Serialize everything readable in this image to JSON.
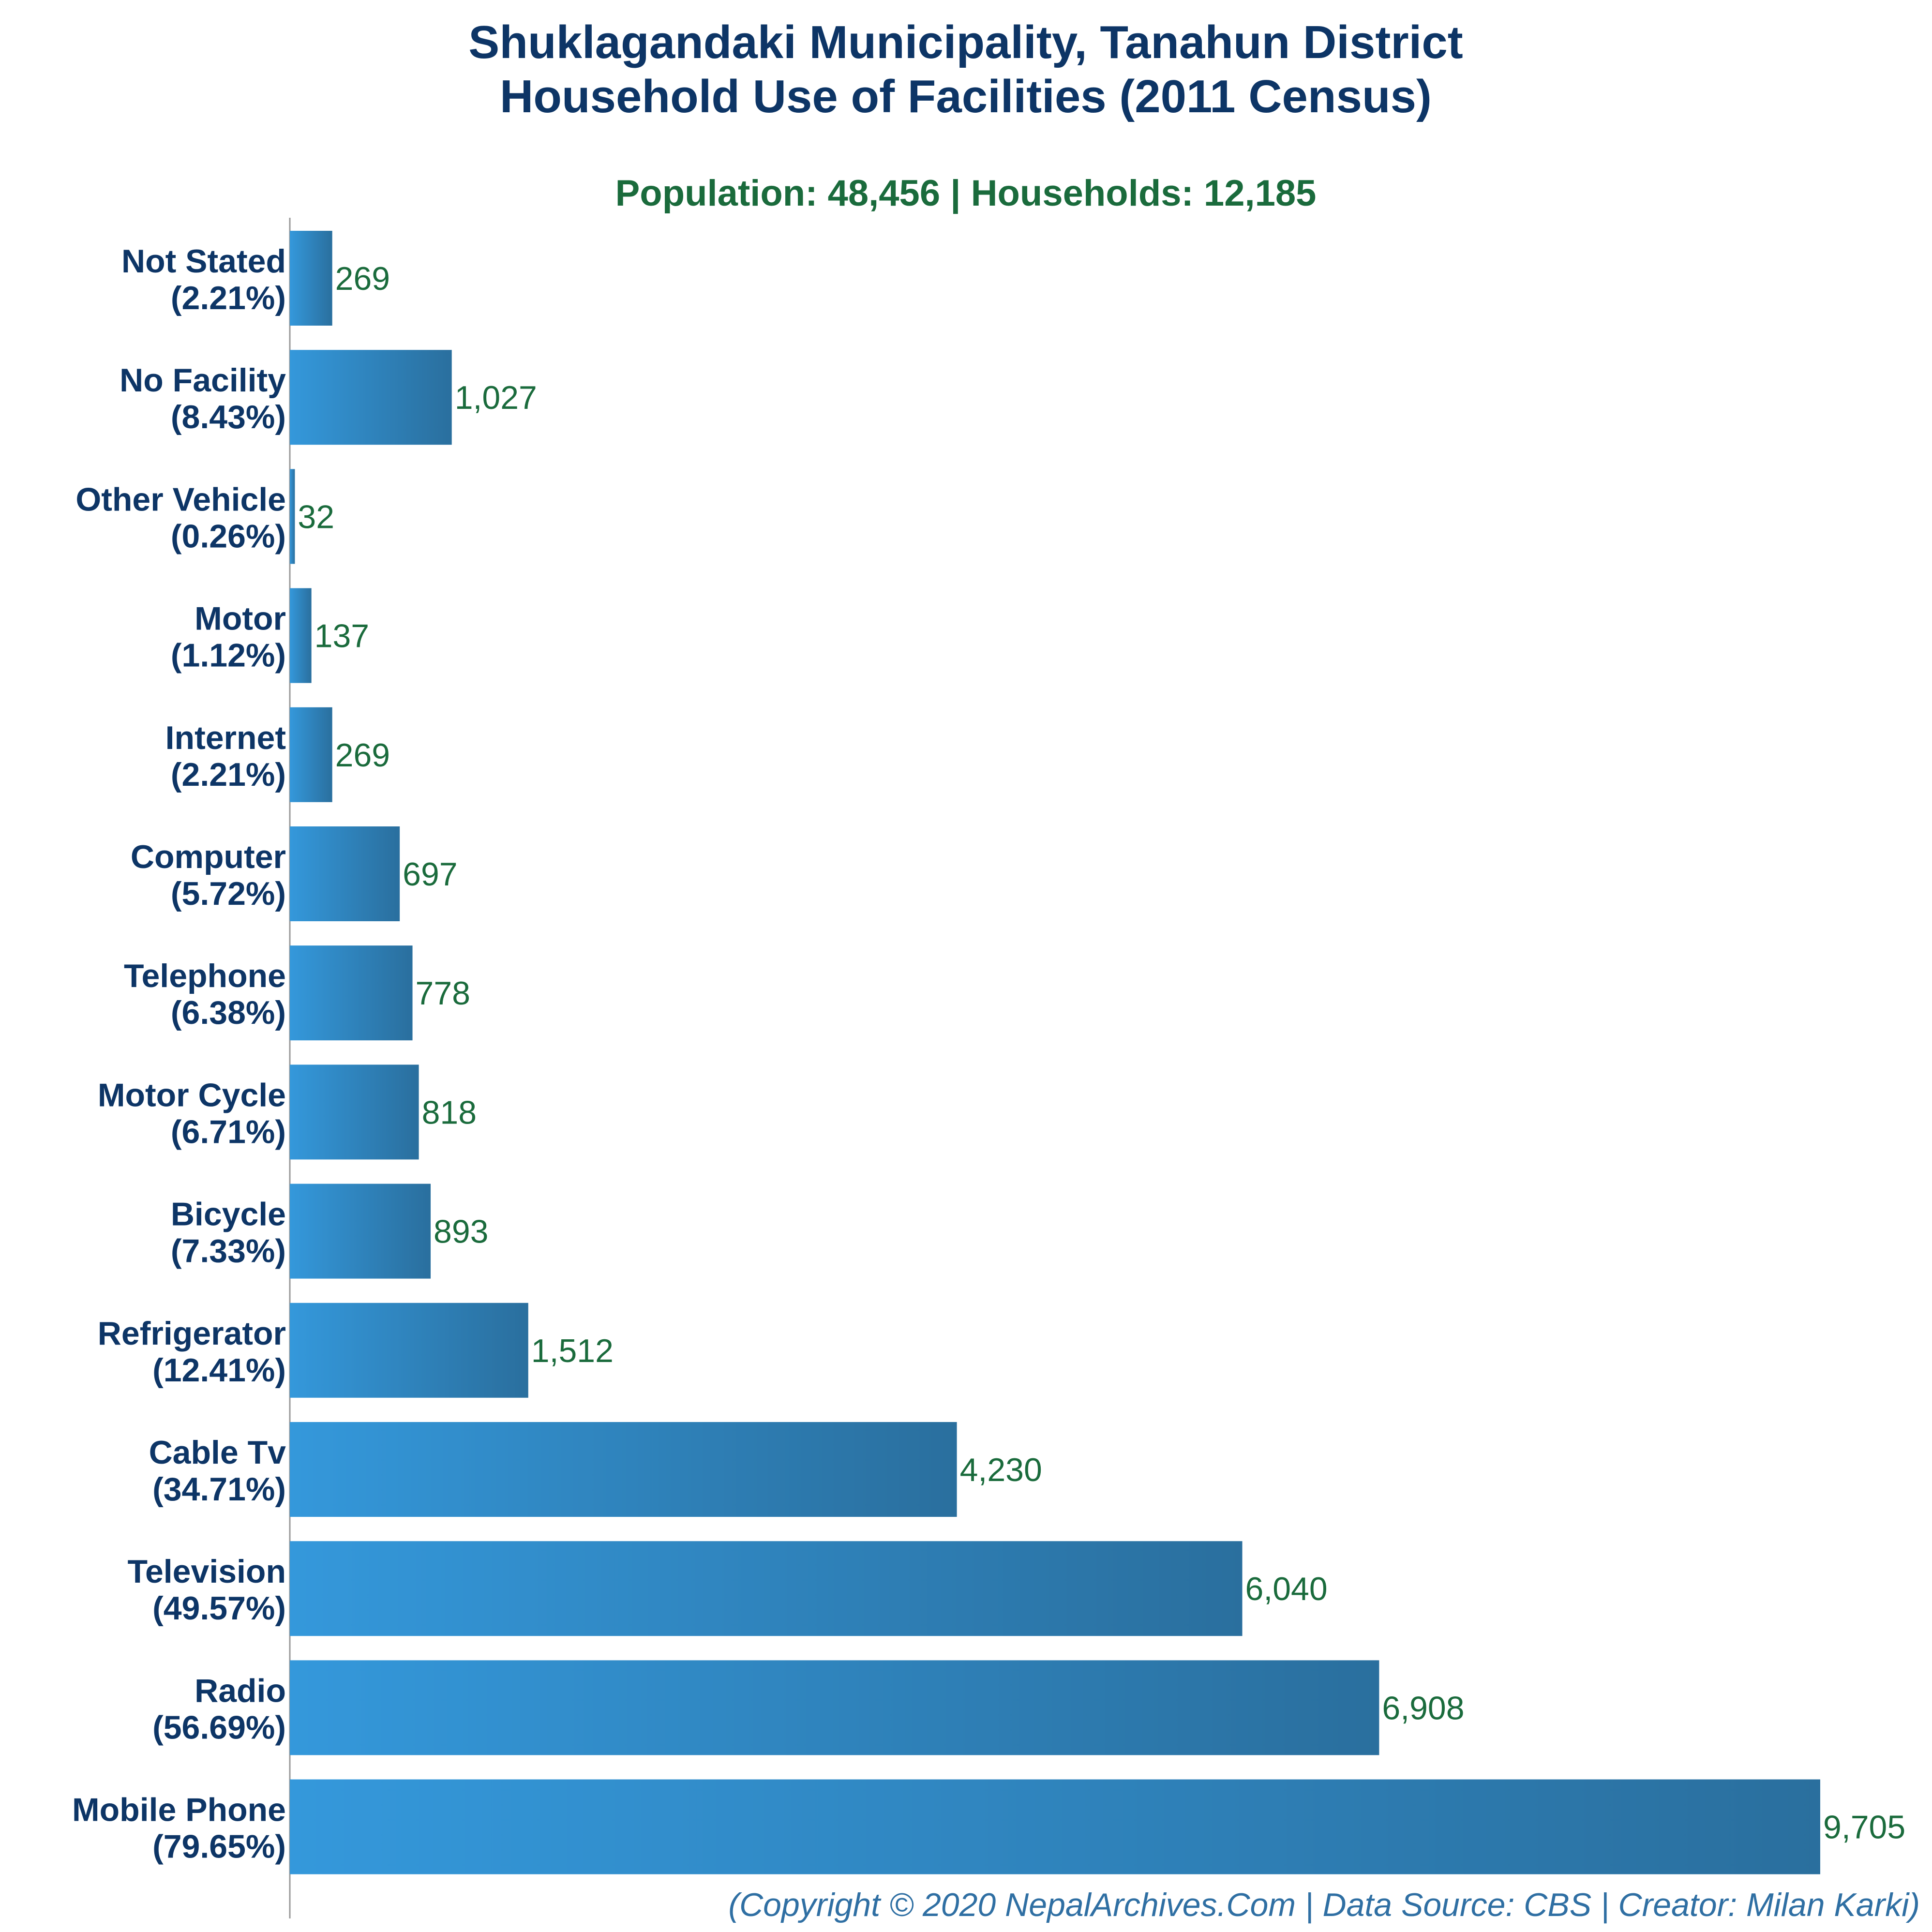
{
  "chart_data": {
    "type": "bar",
    "orientation": "horizontal",
    "title_lines": [
      "Shuklagandaki Municipality, Tanahun District",
      "Household Use of Facilities (2011 Census)"
    ],
    "subtitle": "Population: 48,456 | Households: 12,185",
    "categories": [
      "Not Stated",
      "No Facility",
      "Other Vehicle",
      "Motor",
      "Internet",
      "Computer",
      "Telephone",
      "Motor Cycle",
      "Bicycle",
      "Refrigerator",
      "Cable Tv",
      "Television",
      "Radio",
      "Mobile Phone"
    ],
    "percent_labels": [
      "(2.21%)",
      "(8.43%)",
      "(0.26%)",
      "(1.12%)",
      "(2.21%)",
      "(5.72%)",
      "(6.38%)",
      "(6.71%)",
      "(7.33%)",
      "(12.41%)",
      "(34.71%)",
      "(49.57%)",
      "(56.69%)",
      "(79.65%)"
    ],
    "values": [
      269,
      1027,
      32,
      137,
      269,
      697,
      778,
      818,
      893,
      1512,
      4230,
      6040,
      6908,
      9705
    ],
    "value_labels": [
      "269",
      "1,027",
      "32",
      "137",
      "269",
      "697",
      "778",
      "818",
      "893",
      "1,512",
      "4,230",
      "6,040",
      "6,908",
      "9,705"
    ],
    "xlim": [
      0,
      9705
    ],
    "grid": false,
    "legend": "none",
    "colors": {
      "bar_start": "#3498db",
      "bar_end": "#2a6f9e",
      "title": "#0d3566",
      "subtitle": "#1a6b3c",
      "category_label": "#0d3566",
      "value_label": "#1a6b3c",
      "footer": "#2f6fa3",
      "axis_line": "#999999"
    }
  },
  "footer": "(Copyright © 2020 NepalArchives.Com | Data Source: CBS | Creator: Milan Karki)"
}
